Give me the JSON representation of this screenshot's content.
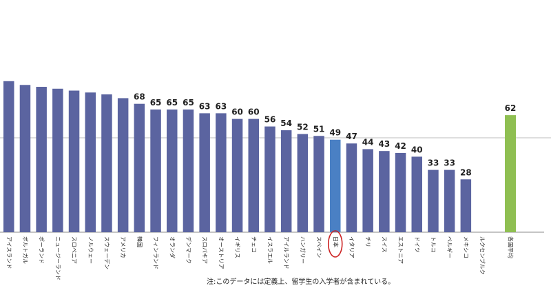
{
  "chart_data": {
    "type": "bar",
    "categories": [
      "アイスランド",
      "ポルトガル",
      "ポーランド",
      "ニュージーランド",
      "スロベニア",
      "ノルウェー",
      "スウェーデン",
      "アメリカ",
      "韓国",
      "フィンランド",
      "オランダ",
      "デンマーク",
      "スロバキア",
      "オーストリア",
      "イギリス",
      "チェコ",
      "イスラエル",
      "アイルランド",
      "ハンガリー",
      "スペイン",
      "日本",
      "イタリア",
      "チリ",
      "スイス",
      "エストニア",
      "ドイツ",
      "トルコ",
      "ベルギー",
      "メキシコ",
      "ルクセンブルク",
      "各国平均"
    ],
    "values": [
      80,
      78,
      77,
      76,
      75,
      74,
      73,
      71,
      68,
      65,
      65,
      65,
      63,
      63,
      60,
      60,
      56,
      54,
      52,
      51,
      49,
      47,
      44,
      43,
      42,
      40,
      33,
      33,
      28,
      null,
      62
    ],
    "value_labels": [
      "",
      "",
      "",
      "",
      "",
      "",
      "",
      "",
      "68",
      "65",
      "65",
      "65",
      "63",
      "63",
      "60",
      "60",
      "56",
      "54",
      "52",
      "51",
      "49",
      "47",
      "44",
      "43",
      "42",
      "40",
      "33",
      "33",
      "28",
      "",
      "62"
    ],
    "highlight_category": "日本",
    "average_category": "各国平均",
    "ylim": [
      0,
      100
    ],
    "grid": true,
    "colors": {
      "bar": "#5b64a0",
      "highlight": "#4a80c4",
      "average": "#8fbf52",
      "circle": "#cc2222",
      "grid": "#bdbdbd"
    },
    "note": "注:このデータには定義上、留学生の入学者が含まれている。"
  }
}
